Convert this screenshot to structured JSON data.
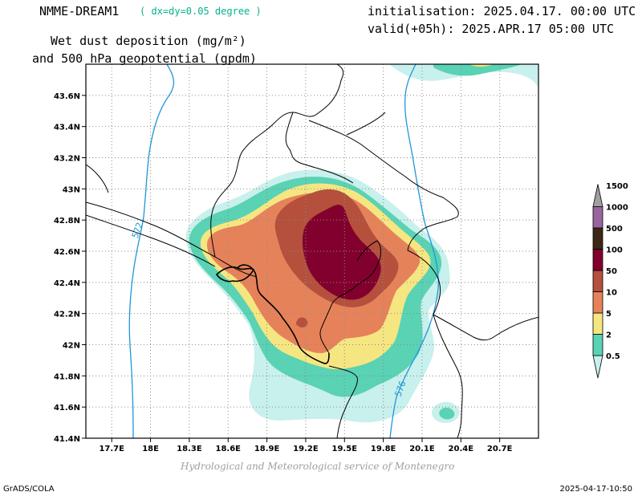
{
  "header": {
    "model": "NMME-DREAM1",
    "resolution": "( dx=dy=0.05 degree )",
    "init": "initialisation: 2025.04.17. 00:00 UTC",
    "valid": "valid(+05h): 2025.APR.17 05:00 UTC",
    "variable_line1": "Wet dust deposition (mg/m²)",
    "variable_line2": "and 500 hPa geopotential (gpdm)"
  },
  "footer": {
    "credit": "Hydrological and Meteorological service of Montenegro",
    "left": "GrADS/COLA",
    "right": "2025-04-17-10:50"
  },
  "chart_data": {
    "type": "filled-contour map",
    "x_ticks": [
      "17.7E",
      "18E",
      "18.3E",
      "18.6E",
      "18.9E",
      "19.2E",
      "19.5E",
      "19.8E",
      "20.1E",
      "20.4E",
      "20.7E"
    ],
    "y_ticks": [
      "43.6N",
      "43.4N",
      "43.2N",
      "43N",
      "42.8N",
      "42.6N",
      "42.4N",
      "42.2N",
      "42N",
      "41.8N",
      "41.6N",
      "41.4N"
    ],
    "xlim": [
      17.5,
      21.0
    ],
    "ylim": [
      41.4,
      43.8
    ],
    "grid": true,
    "legend": {
      "position": "right",
      "levels": [
        "0.5",
        "2",
        "5",
        "10",
        "50",
        "100",
        "500",
        "1000",
        "1500"
      ],
      "colors": [
        "#c8f0ec",
        "#5ad2b4",
        "#f5e682",
        "#e6825a",
        "#b4503c",
        "#82002d",
        "#3c2814",
        "#9a64a0",
        "#a0a0a0"
      ]
    },
    "geopotential_contours": [
      {
        "value": "572",
        "color": "#1e96dc"
      },
      {
        "value": "576",
        "color": "#1e96dc"
      }
    ],
    "deposition_peak_range": "100–500"
  }
}
